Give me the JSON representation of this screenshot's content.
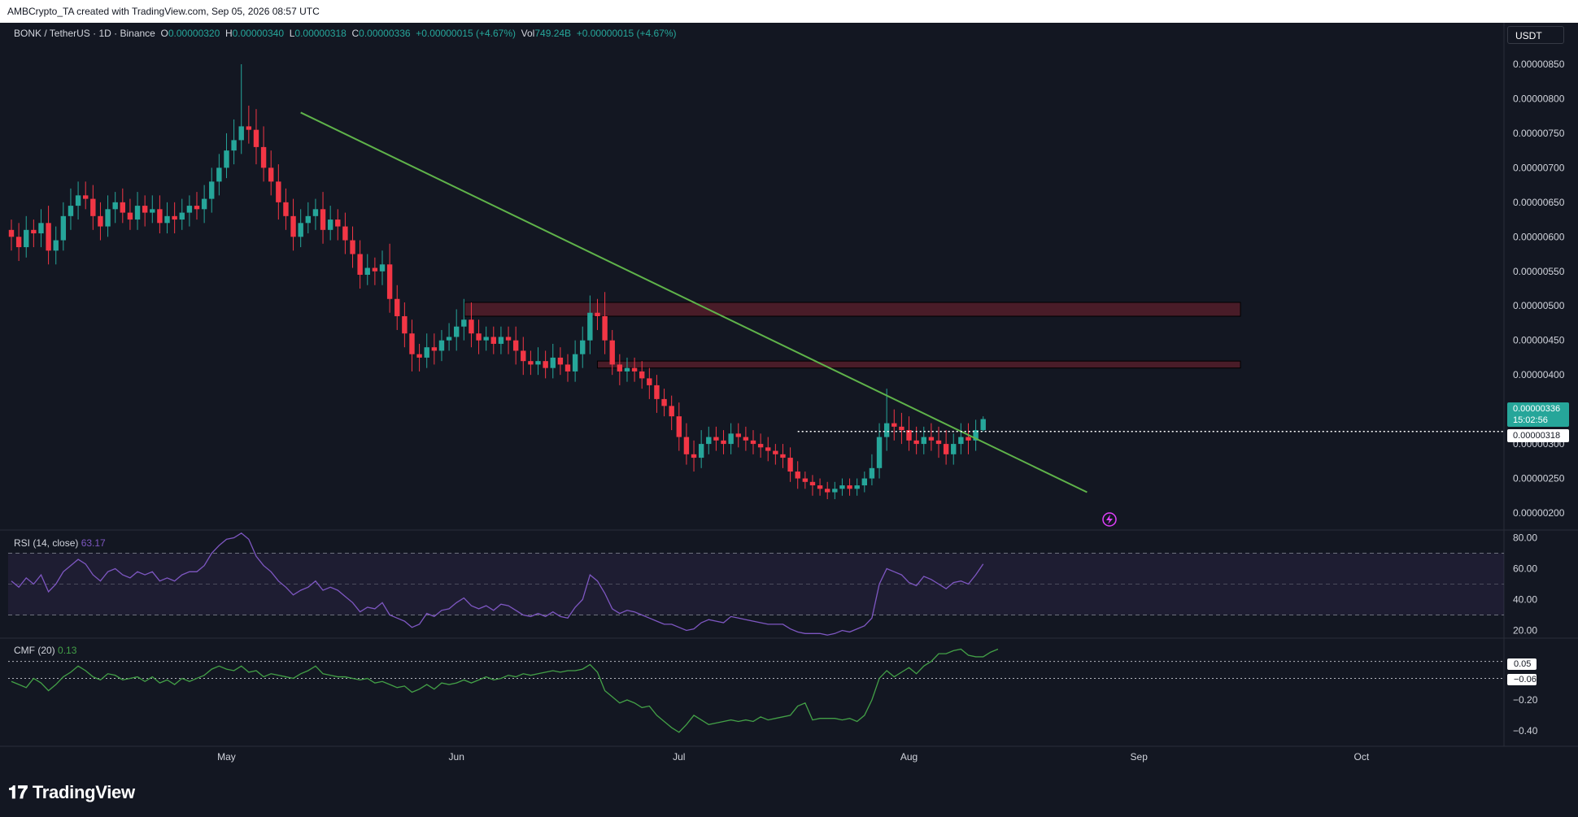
{
  "header": {
    "text": "AMBCrypto_TA created with TradingView.com, Sep 05, 2026 08:57 UTC"
  },
  "legend": {
    "symbol": "BONK / TetherUS · 1D · Binance",
    "open_label": "O",
    "open": "0.00000320",
    "high_label": "H",
    "high": "0.00000340",
    "low_label": "L",
    "low": "0.00000318",
    "close_label": "C",
    "close": "0.00000336",
    "change": "+0.00000015 (+4.67%)",
    "vol_label": "Vol",
    "vol": "749.24B",
    "vol_change": "+0.00000015 (+4.67%)"
  },
  "currency_button": "USDT",
  "price_tag": {
    "price": "0.00000336",
    "countdown": "15:02:56",
    "low": "0.00000318"
  },
  "rsi": {
    "label": "RSI (14, close)",
    "value": "63.17"
  },
  "cmf": {
    "label": "CMF (20)",
    "value": "0.13",
    "upper_tag": "0.05",
    "lower_tag": "−0.06"
  },
  "brand": "TradingView",
  "colors": {
    "up": "#26a69a",
    "down": "#f23645",
    "trendline": "#5fb34a",
    "rsi_line": "#7e57c2",
    "cmf_line": "#43a047",
    "zone": "#5c1f2b"
  },
  "chart_data": [
    {
      "type": "candlestick",
      "title": "BONK / TetherUS · 1D · Binance",
      "x_ticks": [
        "May",
        "Jun",
        "Jul",
        "Aug",
        "Sep",
        "Oct"
      ],
      "y_ticks": [
        "0.00000850",
        "0.00000800",
        "0.00000750",
        "0.00000700",
        "0.00000650",
        "0.00000600",
        "0.00000550",
        "0.00000500",
        "0.00000450",
        "0.00000400",
        "0.00000350",
        "0.00000300",
        "0.00000250",
        "0.00000200"
      ],
      "ylim": [
        1.8e-06,
        8.7e-06
      ],
      "x_start": "2026-04-02",
      "series": [
        {
          "name": "BONK/USDT",
          "close": [
            6.0,
            5.85,
            6.1,
            6.05,
            6.2,
            5.8,
            5.95,
            6.3,
            6.45,
            6.6,
            6.55,
            6.3,
            6.15,
            6.4,
            6.5,
            6.35,
            6.25,
            6.45,
            6.35,
            6.4,
            6.2,
            6.3,
            6.25,
            6.35,
            6.45,
            6.4,
            6.55,
            6.8,
            7.0,
            7.25,
            7.4,
            7.6,
            7.55,
            7.3,
            7.0,
            6.8,
            6.5,
            6.3,
            6.0,
            6.2,
            6.3,
            6.4,
            6.1,
            6.25,
            6.15,
            5.95,
            5.75,
            5.45,
            5.55,
            5.5,
            5.6,
            5.1,
            4.85,
            4.6,
            4.3,
            4.25,
            4.4,
            4.35,
            4.5,
            4.55,
            4.7,
            4.8,
            4.6,
            4.5,
            4.55,
            4.45,
            4.55,
            4.5,
            4.35,
            4.2,
            4.15,
            4.2,
            4.1,
            4.25,
            4.15,
            4.05,
            4.3,
            4.5,
            4.9,
            4.85,
            4.5,
            4.15,
            4.05,
            4.1,
            4.05,
            3.95,
            3.85,
            3.65,
            3.55,
            3.4,
            3.1,
            2.85,
            2.8,
            3.0,
            3.1,
            3.05,
            3.0,
            3.15,
            3.1,
            3.05,
            3.0,
            2.95,
            2.9,
            2.85,
            2.8,
            2.6,
            2.5,
            2.45,
            2.4,
            2.35,
            2.3,
            2.35,
            2.4,
            2.35,
            2.4,
            2.5,
            2.65,
            3.1,
            3.3,
            3.25,
            3.2,
            3.05,
            3.0,
            3.1,
            3.05,
            3.0,
            2.85,
            3.0,
            3.1,
            3.05,
            3.2,
            3.36
          ],
          "high_delta": [
            0.15,
            0.2,
            0.2,
            0.15,
            0.2,
            0.25,
            0.2,
            0.2,
            0.25,
            0.2,
            0.2,
            0.2,
            0.2,
            0.2,
            0.15,
            0.2,
            0.2,
            0.2,
            0.15,
            0.2,
            0.2,
            0.2,
            0.2,
            0.2,
            0.15,
            0.2,
            0.2,
            0.2,
            0.2,
            0.25,
            0.3,
            0.9,
            0.3,
            0.3,
            0.3,
            0.25,
            0.25,
            0.2,
            0.25,
            0.2,
            0.2,
            0.15,
            0.25,
            0.2,
            0.15,
            0.2,
            0.2,
            0.2,
            0.2,
            0.15,
            0.2,
            0.3,
            0.2,
            0.2,
            0.2,
            0.15,
            0.2,
            0.2,
            0.15,
            0.2,
            0.25,
            0.3,
            0.25,
            0.2,
            0.15,
            0.15,
            0.15,
            0.15,
            0.2,
            0.2,
            0.15,
            0.2,
            0.15,
            0.2,
            0.15,
            0.15,
            0.2,
            0.2,
            0.25,
            0.2,
            0.35,
            0.15,
            0.15,
            0.15,
            0.15,
            0.15,
            0.15,
            0.15,
            0.15,
            0.15,
            0.2,
            0.2,
            0.2,
            0.2,
            0.15,
            0.15,
            0.15,
            0.15,
            0.15,
            0.15,
            0.15,
            0.15,
            0.15,
            0.1,
            0.15,
            0.15,
            0.15,
            0.1,
            0.1,
            0.1,
            0.1,
            0.1,
            0.1,
            0.1,
            0.1,
            0.1,
            0.2,
            0.2,
            0.5,
            0.2,
            0.2,
            0.2,
            0.2,
            0.15,
            0.2,
            0.2,
            0.2,
            0.15,
            0.2,
            0.2,
            0.15,
            0.04
          ],
          "low_delta": [
            0.2,
            0.2,
            0.15,
            0.2,
            0.2,
            0.2,
            0.2,
            0.15,
            0.2,
            0.2,
            0.15,
            0.2,
            0.2,
            0.15,
            0.2,
            0.15,
            0.15,
            0.15,
            0.2,
            0.15,
            0.15,
            0.15,
            0.2,
            0.15,
            0.2,
            0.15,
            0.2,
            0.2,
            0.2,
            0.15,
            0.2,
            0.2,
            0.2,
            0.25,
            0.2,
            0.2,
            0.25,
            0.2,
            0.2,
            0.15,
            0.15,
            0.2,
            0.2,
            0.15,
            0.2,
            0.2,
            0.2,
            0.2,
            0.15,
            0.2,
            0.2,
            0.2,
            0.2,
            0.2,
            0.25,
            0.2,
            0.15,
            0.2,
            0.15,
            0.15,
            0.2,
            0.2,
            0.2,
            0.2,
            0.15,
            0.15,
            0.15,
            0.2,
            0.2,
            0.2,
            0.15,
            0.15,
            0.15,
            0.15,
            0.15,
            0.15,
            0.15,
            0.2,
            0.2,
            0.2,
            0.2,
            0.15,
            0.2,
            0.15,
            0.15,
            0.15,
            0.2,
            0.2,
            0.15,
            0.2,
            0.2,
            0.15,
            0.2,
            0.15,
            0.15,
            0.15,
            0.15,
            0.15,
            0.15,
            0.15,
            0.15,
            0.15,
            0.15,
            0.15,
            0.15,
            0.15,
            0.15,
            0.1,
            0.15,
            0.1,
            0.1,
            0.1,
            0.1,
            0.1,
            0.1,
            0.1,
            0.1,
            0.15,
            0.2,
            0.2,
            0.2,
            0.15,
            0.15,
            0.15,
            0.15,
            0.2,
            0.15,
            0.15,
            0.15,
            0.2,
            0.15,
            0.02
          ]
        }
      ],
      "price_unit": "1e-6 USDT",
      "resistance_zones": [
        [
          4.85,
          5.05
        ],
        [
          4.1,
          4.2
        ]
      ],
      "trendline": {
        "from": [
          "2026-05-11",
          7.8
        ],
        "to": [
          "2026-08-25",
          2.3
        ]
      },
      "last_price_line": 3.18
    },
    {
      "type": "line",
      "title": "RSI (14, close)",
      "y_ticks": [
        "80.00",
        "60.00",
        "40.00",
        "20.00"
      ],
      "ylim": [
        15,
        85
      ],
      "bands": [
        30,
        50,
        70
      ],
      "series": [
        {
          "name": "RSI",
          "values": [
            52,
            48,
            54,
            50,
            56,
            45,
            50,
            58,
            62,
            66,
            63,
            56,
            52,
            58,
            60,
            56,
            54,
            58,
            56,
            58,
            52,
            54,
            52,
            56,
            58,
            58,
            62,
            70,
            75,
            79,
            80,
            83,
            79,
            68,
            62,
            58,
            52,
            48,
            43,
            46,
            48,
            52,
            46,
            48,
            46,
            42,
            38,
            32,
            35,
            34,
            38,
            30,
            28,
            26,
            22,
            24,
            31,
            29,
            33,
            34,
            38,
            41,
            36,
            34,
            36,
            33,
            37,
            36,
            33,
            30,
            29,
            31,
            29,
            32,
            29,
            28,
            35,
            40,
            56,
            52,
            44,
            34,
            31,
            33,
            32,
            30,
            28,
            26,
            24,
            24,
            22,
            20,
            21,
            25,
            27,
            26,
            25,
            29,
            28,
            27,
            26,
            25,
            24,
            24,
            24,
            21,
            19,
            18,
            18,
            18,
            17,
            18,
            20,
            19,
            21,
            23,
            28,
            50,
            60,
            58,
            56,
            51,
            49,
            55,
            53,
            50,
            47,
            51,
            52,
            50,
            56,
            63
          ]
        }
      ]
    },
    {
      "type": "line",
      "title": "CMF (20)",
      "y_ticks": [
        "−0.20",
        "−0.40"
      ],
      "ylim": [
        -0.48,
        0.18
      ],
      "ref_lines": [
        0.05,
        -0.06
      ],
      "series": [
        {
          "name": "CMF",
          "values": [
            -0.08,
            -0.1,
            -0.12,
            -0.06,
            -0.09,
            -0.14,
            -0.1,
            -0.05,
            -0.02,
            0.02,
            -0.01,
            -0.05,
            -0.07,
            -0.03,
            -0.04,
            -0.07,
            -0.06,
            -0.05,
            -0.08,
            -0.05,
            -0.09,
            -0.07,
            -0.1,
            -0.06,
            -0.08,
            -0.06,
            -0.04,
            0.0,
            0.02,
            0.0,
            -0.01,
            0.02,
            -0.02,
            -0.01,
            -0.05,
            -0.03,
            -0.04,
            -0.05,
            -0.06,
            -0.03,
            -0.01,
            0.02,
            -0.03,
            -0.04,
            -0.05,
            -0.05,
            -0.06,
            -0.07,
            -0.06,
            -0.09,
            -0.08,
            -0.1,
            -0.12,
            -0.11,
            -0.15,
            -0.13,
            -0.1,
            -0.13,
            -0.09,
            -0.1,
            -0.09,
            -0.07,
            -0.09,
            -0.07,
            -0.05,
            -0.07,
            -0.06,
            -0.04,
            -0.05,
            -0.03,
            -0.04,
            -0.03,
            -0.02,
            -0.01,
            -0.02,
            -0.01,
            -0.01,
            0.0,
            0.03,
            -0.02,
            -0.14,
            -0.18,
            -0.22,
            -0.2,
            -0.22,
            -0.25,
            -0.24,
            -0.3,
            -0.34,
            -0.38,
            -0.41,
            -0.36,
            -0.3,
            -0.33,
            -0.36,
            -0.35,
            -0.34,
            -0.33,
            -0.34,
            -0.33,
            -0.34,
            -0.31,
            -0.33,
            -0.32,
            -0.31,
            -0.3,
            -0.24,
            -0.22,
            -0.33,
            -0.32,
            -0.32,
            -0.32,
            -0.33,
            -0.32,
            -0.34,
            -0.3,
            -0.2,
            -0.06,
            -0.01,
            -0.05,
            -0.02,
            0.01,
            -0.03,
            0.02,
            0.05,
            0.1,
            0.1,
            0.12,
            0.13,
            0.09,
            0.08,
            0.08,
            0.11,
            0.13
          ]
        }
      ]
    }
  ]
}
